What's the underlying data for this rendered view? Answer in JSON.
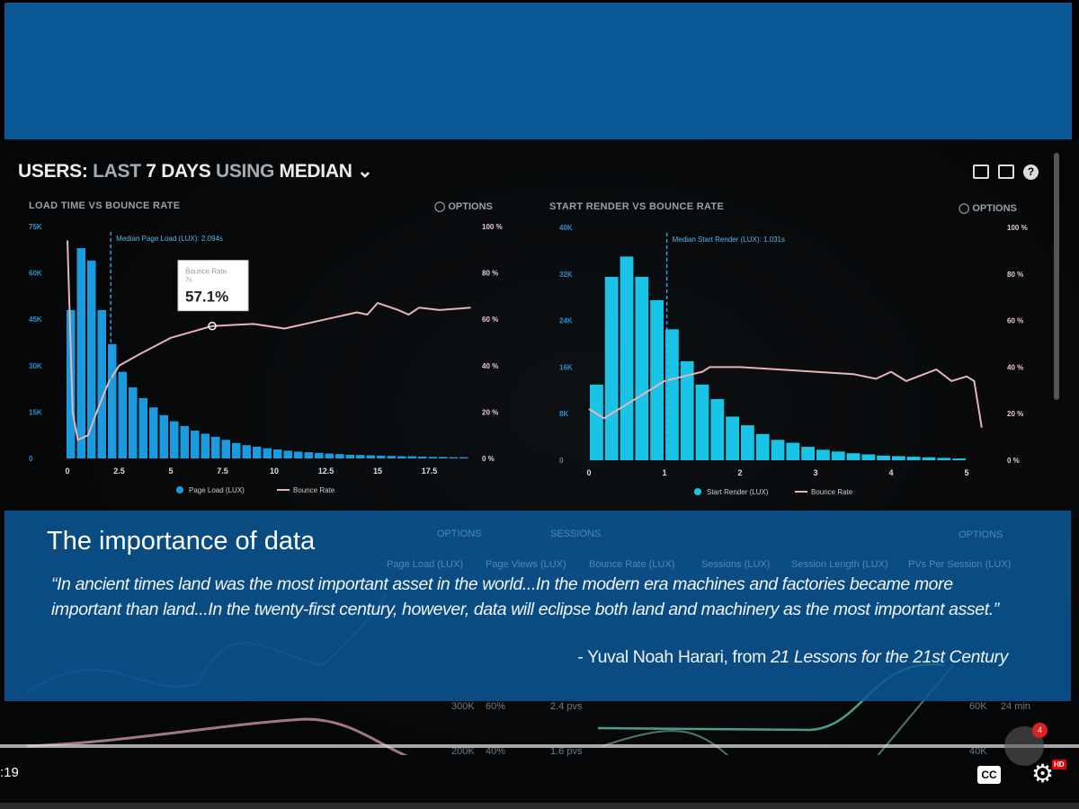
{
  "dashboard": {
    "title_parts": [
      "USERS:",
      "LAST",
      "7 DAYS",
      "USING",
      "MEDIAN"
    ],
    "icons": [
      "monitor-icon",
      "share-icon",
      "help-icon"
    ]
  },
  "chart_data": [
    {
      "type": "bar",
      "title": "LOAD TIME VS BOUNCE RATE",
      "options_label": "OPTIONS",
      "x_ticks": [
        "0",
        "2.5",
        "5",
        "7.5",
        "10",
        "12.5",
        "15",
        "17.5"
      ],
      "y_left_ticks": [
        "0",
        "15K",
        "30K",
        "45K",
        "60K",
        "75K"
      ],
      "y_right_ticks": [
        "0 %",
        "20 %",
        "40 %",
        "60 %",
        "80 %",
        "100 %"
      ],
      "xlim": [
        0,
        20
      ],
      "ylim_left": [
        0,
        75000
      ],
      "ylim_right": [
        0,
        100
      ],
      "bar_width": 0.5,
      "series": [
        {
          "name": "Page Load (LUX)",
          "color": "#1a9be0",
          "kind": "bar",
          "x": [
            0,
            0.5,
            1,
            1.5,
            2,
            2.5,
            3,
            3.5,
            4,
            4.5,
            5,
            5.5,
            6,
            6.5,
            7,
            7.5,
            8,
            8.5,
            9,
            9.5,
            10,
            10.5,
            11,
            11.5,
            12,
            12.5,
            13,
            13.5,
            14,
            14.5,
            15,
            15.5,
            16,
            16.5,
            17,
            17.5,
            18,
            18.5,
            19
          ],
          "values": [
            48000,
            68000,
            64000,
            48000,
            37000,
            28000,
            23000,
            19500,
            16500,
            14000,
            12000,
            10500,
            9000,
            8000,
            7000,
            6000,
            5000,
            4300,
            3800,
            3300,
            2900,
            2500,
            2200,
            2000,
            1800,
            1600,
            1400,
            1200,
            1100,
            1000,
            900,
            800,
            700,
            700,
            600,
            500,
            500,
            400,
            400
          ]
        },
        {
          "name": "Bounce Rate",
          "color": "#e8b4b8",
          "kind": "line",
          "x": [
            0,
            0.25,
            0.5,
            1,
            1.5,
            2,
            2.5,
            3.5,
            5,
            7,
            9,
            10.5,
            12.5,
            14,
            14.5,
            15,
            16,
            16.5,
            17,
            18,
            19.5
          ],
          "values": [
            94,
            20,
            8,
            10,
            22,
            33,
            40,
            45,
            52,
            57.1,
            58,
            56,
            60,
            63,
            62,
            67,
            64,
            62,
            65,
            64,
            65
          ]
        }
      ],
      "annotation": "Median Page Load (LUX): 2.094s",
      "median_x": 2.094,
      "tooltip": {
        "label": "Bounce Rate",
        "sub": "7s",
        "value": "57.1%",
        "x": 7,
        "y": 57.1
      },
      "legend": [
        "Page Load (LUX)",
        "Bounce Rate"
      ]
    },
    {
      "type": "bar",
      "title": "START RENDER VS BOUNCE RATE",
      "options_label": "OPTIONS",
      "x_ticks": [
        "0",
        "1",
        "2",
        "3",
        "4",
        "5"
      ],
      "y_left_ticks": [
        "0",
        "8K",
        "16K",
        "24K",
        "32K",
        "40K"
      ],
      "y_right_ticks": [
        "0 %",
        "20 %",
        "40 %",
        "60 %",
        "80 %",
        "100 %"
      ],
      "xlim": [
        0,
        5.5
      ],
      "ylim_left": [
        0,
        40000
      ],
      "ylim_right": [
        0,
        100
      ],
      "bar_width": 0.2,
      "series": [
        {
          "name": "Start Render (LUX)",
          "color": "#19c4e6",
          "kind": "bar",
          "x": [
            0.1,
            0.3,
            0.5,
            0.7,
            0.9,
            1.1,
            1.3,
            1.5,
            1.7,
            1.9,
            2.1,
            2.3,
            2.5,
            2.7,
            2.9,
            3.1,
            3.3,
            3.5,
            3.7,
            3.9,
            4.1,
            4.3,
            4.5,
            4.7,
            4.9
          ],
          "values": [
            13000,
            31500,
            35000,
            31500,
            27500,
            22500,
            17000,
            13000,
            10500,
            7500,
            6000,
            4500,
            3500,
            3000,
            2300,
            1800,
            1500,
            1200,
            1000,
            800,
            700,
            600,
            500,
            400,
            300
          ]
        },
        {
          "name": "Bounce Rate",
          "color": "#e8b4b8",
          "kind": "line",
          "x": [
            0,
            0.2,
            0.5,
            1,
            1.5,
            1.6,
            2,
            3,
            3.5,
            3.8,
            4,
            4.2,
            4.6,
            4.8,
            5,
            5.1,
            5.2
          ],
          "values": [
            22,
            18,
            24,
            34,
            38,
            40,
            40,
            38,
            37,
            35,
            38,
            34,
            39,
            34,
            36,
            34,
            14
          ]
        }
      ],
      "annotation": "Median Start Render (LUX): 1.031s",
      "median_x": 1.031,
      "legend": [
        "Start Render (LUX)",
        "Bounce Rate"
      ]
    }
  ],
  "lower_panel": {
    "labels": [
      "OPTIONS",
      "SESSIONS",
      "OPTIONS",
      "Page Load (LUX)",
      "Page Views (LUX)",
      "Bounce Rate (LUX)",
      "Sessions (LUX)",
      "Session Length (LUX)",
      "PVs Per Session (LUX)",
      "300K",
      "60%",
      "2.4 pvs",
      "60K",
      "24 min",
      "200K",
      "40%",
      "1.6 pvs",
      "40K"
    ]
  },
  "caption": {
    "title": "The importance of data",
    "quote": "“In ancient times land was the most important asset in the world...In the modern era machines and factories became more important than land...In the twenty-first century, however, data will eclipse both land and machinery as the most important asset.”",
    "attribution_prefix": "- Yuval Noah Harari, from ",
    "attribution_book": "21 Lessons for the 21st Century"
  },
  "player": {
    "time": ":19",
    "cc_label": "CC",
    "hd_badge": "HD",
    "notification_count": "4",
    "progress_fraction": 1.0
  }
}
